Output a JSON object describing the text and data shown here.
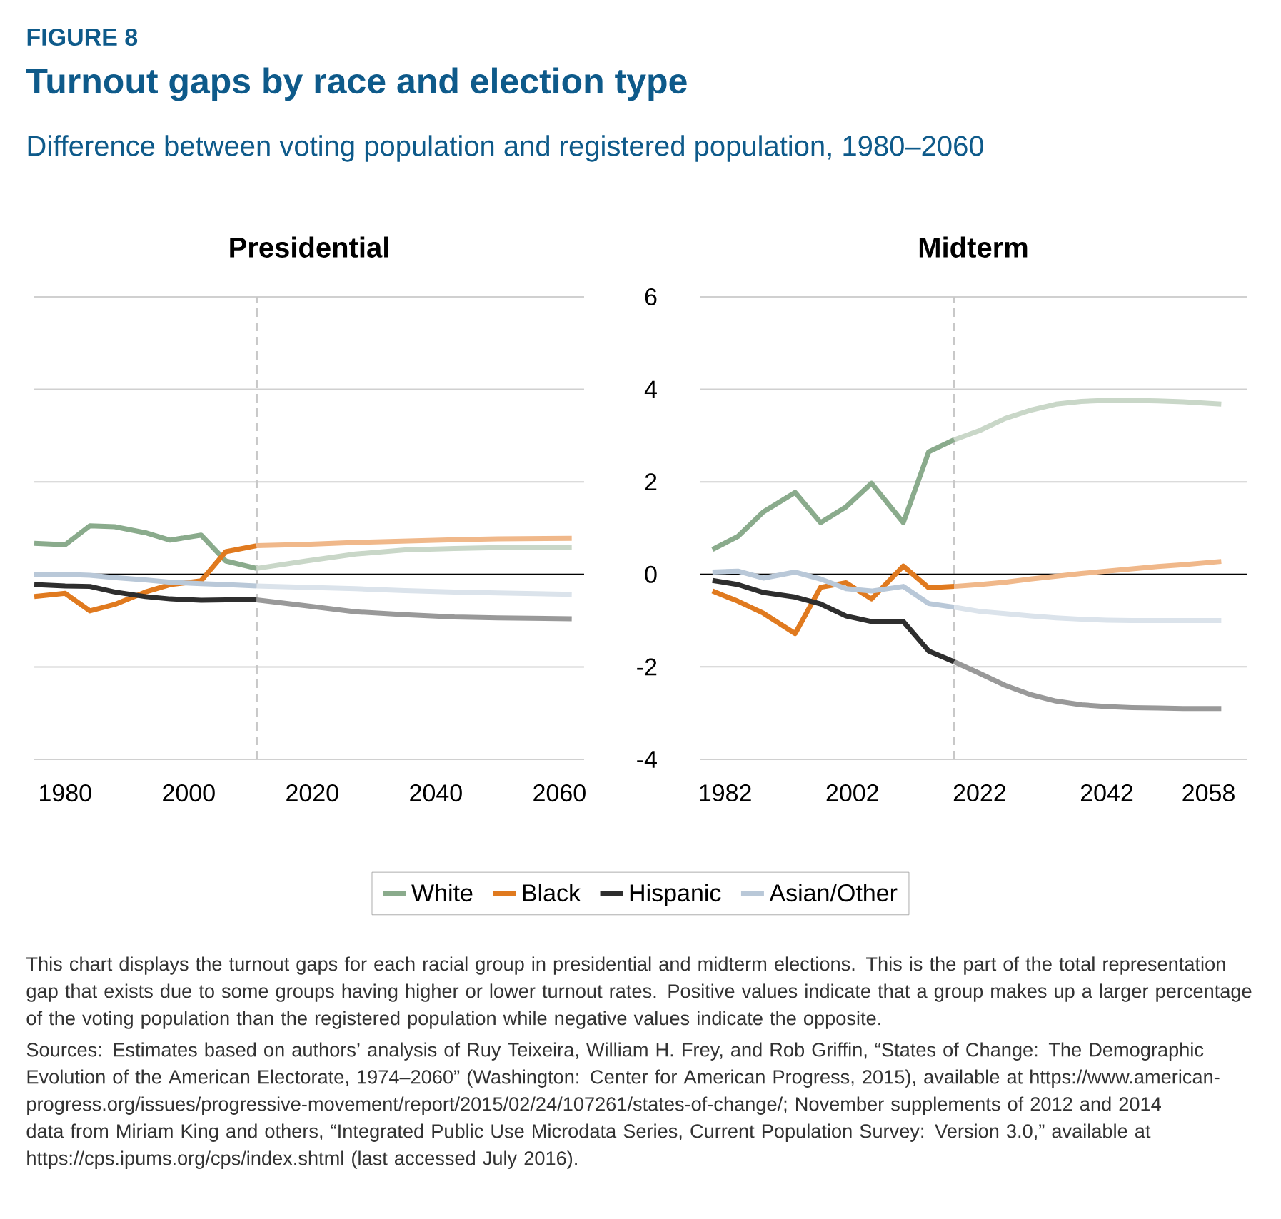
{
  "chart_data": [
    {
      "type": "other",
      "title": "Turnout gaps by race and election type",
      "subtitle": "Difference between voting population and registered population, 1980–2060",
      "annotations": [
        "FIGURE 8",
        "This chart displays the turnout gaps for each racial group in presidential and midterm elections. This is the part of the total representation gap that exists due to some groups having higher or lower turnout rates. Positive values indicate that a group makes up a larger percentage of the voting population than the registered population while negative values indicate the opposite.",
        "Sources: Estimates based on authors’ analysis of Ruy Teixeira, William H. Frey, and Rob Griffin, “States of Change: The Demographic Evolution of the American Electorate, 1974–2060” (Washington: Center for American Progress, 2015), available at https://www.american-progress.org/issues/progressive-movement/report/2015/02/24/107261/states-of-change/; November supplements of 2012 and 2014 data from Miriam King and others, “Integrated Public Use Microdata Series, Current Population Survey: Version 3.0,” available at https://cps.ipums.org/cps/index.shtml (last accessed July 2016)."
      ]
    },
    {
      "type": "line",
      "title": "Presidential",
      "xlim": [
        1975,
        2064
      ],
      "ylim": [
        -4,
        6
      ],
      "xticks": [
        1980,
        2000,
        2020,
        2040,
        2060
      ],
      "yticks": [
        -4,
        -2,
        0,
        2,
        4,
        6
      ],
      "tick_labels": "x",
      "grid": "y",
      "legend": "bottom",
      "ref_lines": [
        {
          "axis": "x",
          "value": 2011,
          "color": "#c8c8c8",
          "line_style": "dashed"
        },
        {
          "axis": "y",
          "value": 0,
          "color": "#000000"
        }
      ],
      "series": [
        {
          "name": "White",
          "color": "#8aab8c",
          "x": [
            1975,
            1980,
            1984,
            1988,
            1993,
            1997,
            2002,
            2006,
            2011
          ],
          "values": [
            0.67,
            0.64,
            1.05,
            1.03,
            0.9,
            0.74,
            0.85,
            0.29,
            0.13
          ]
        },
        {
          "name": "Black",
          "color": "#e07a1f",
          "x": [
            1975,
            1980,
            1984,
            1988,
            1993,
            1997,
            2002,
            2006,
            2011
          ],
          "values": [
            -0.48,
            -0.41,
            -0.79,
            -0.65,
            -0.38,
            -0.22,
            -0.14,
            0.49,
            0.62
          ]
        },
        {
          "name": "Hispanic",
          "color": "#2e2e2e",
          "x": [
            1975,
            1980,
            1984,
            1988,
            1993,
            1997,
            2002,
            2006,
            2011
          ],
          "values": [
            -0.22,
            -0.25,
            -0.26,
            -0.38,
            -0.48,
            -0.53,
            -0.56,
            -0.55,
            -0.55
          ]
        },
        {
          "name": "Asian/Other",
          "color": "#b9c8d8",
          "x": [
            1975,
            1980,
            1984,
            1988,
            1993,
            1997,
            2002,
            2006,
            2011
          ],
          "values": [
            0,
            0,
            -0.02,
            -0.07,
            -0.12,
            -0.17,
            -0.2,
            -0.22,
            -0.25
          ]
        },
        {
          "color": "#c9d7c8",
          "x": [
            2011,
            2019,
            2027,
            2035,
            2043,
            2050,
            2062
          ],
          "values": [
            0.13,
            0.29,
            0.44,
            0.53,
            0.56,
            0.58,
            0.59
          ]
        },
        {
          "color": "#f0b88a",
          "x": [
            2011,
            2019,
            2027,
            2035,
            2043,
            2050,
            2062
          ],
          "values": [
            0.62,
            0.65,
            0.69,
            0.72,
            0.75,
            0.77,
            0.78
          ]
        },
        {
          "color": "#999999",
          "x": [
            2011,
            2019,
            2027,
            2035,
            2043,
            2050,
            2062
          ],
          "values": [
            -0.55,
            -0.68,
            -0.81,
            -0.87,
            -0.92,
            -0.94,
            -0.96
          ]
        },
        {
          "color": "#dbe3eb",
          "x": [
            2011,
            2019,
            2027,
            2035,
            2043,
            2050,
            2062
          ],
          "values": [
            -0.25,
            -0.28,
            -0.31,
            -0.35,
            -0.38,
            -0.4,
            -0.43
          ]
        }
      ]
    },
    {
      "type": "line",
      "title": "Midterm",
      "xlim": [
        1978,
        2064
      ],
      "ylim": [
        -4,
        6
      ],
      "xticks": [
        1982,
        2002,
        2022,
        2042,
        2058
      ],
      "yticks": [
        -4,
        -2,
        0,
        2,
        4,
        6
      ],
      "grid": "y",
      "ref_lines": [
        {
          "axis": "x",
          "value": 2018,
          "color": "#c8c8c8",
          "line_style": "dashed"
        },
        {
          "axis": "y",
          "value": 0,
          "color": "#000000"
        }
      ],
      "series": [
        {
          "color": "#8aab8c",
          "x": [
            1980,
            1984,
            1988,
            1993,
            1997,
            2001,
            2005,
            2010,
            2014,
            2018
          ],
          "values": [
            0.54,
            0.82,
            1.35,
            1.77,
            1.12,
            1.46,
            1.97,
            1.12,
            2.65,
            2.91
          ]
        },
        {
          "color": "#e07a1f",
          "x": [
            1980,
            1984,
            1988,
            1993,
            1997,
            2001,
            2005,
            2010,
            2014,
            2018
          ],
          "values": [
            -0.36,
            -0.58,
            -0.84,
            -1.28,
            -0.28,
            -0.18,
            -0.53,
            0.18,
            -0.29,
            -0.26
          ]
        },
        {
          "color": "#2e2e2e",
          "x": [
            1980,
            1984,
            1988,
            1993,
            1997,
            2001,
            2005,
            2010,
            2014,
            2018
          ],
          "values": [
            -0.13,
            -0.22,
            -0.39,
            -0.49,
            -0.64,
            -0.9,
            -1.02,
            -1.02,
            -1.66,
            -1.89
          ]
        },
        {
          "color": "#b9c8d8",
          "x": [
            1980,
            1984,
            1988,
            1993,
            1997,
            2001,
            2005,
            2010,
            2014,
            2018
          ],
          "values": [
            0.05,
            0.07,
            -0.08,
            0.05,
            -0.1,
            -0.31,
            -0.36,
            -0.26,
            -0.63,
            -0.71
          ]
        },
        {
          "color": "#c9d7c8",
          "x": [
            2018,
            2022,
            2026,
            2030,
            2034,
            2038,
            2042,
            2046,
            2050,
            2054,
            2060
          ],
          "values": [
            2.91,
            3.11,
            3.37,
            3.55,
            3.68,
            3.74,
            3.76,
            3.76,
            3.75,
            3.73,
            3.68
          ]
        },
        {
          "color": "#f0b88a",
          "x": [
            2018,
            2022,
            2026,
            2030,
            2034,
            2038,
            2042,
            2046,
            2050,
            2054,
            2060
          ],
          "values": [
            -0.26,
            -0.22,
            -0.17,
            -0.1,
            -0.04,
            0.02,
            0.07,
            0.12,
            0.17,
            0.21,
            0.28
          ]
        },
        {
          "color": "#999999",
          "x": [
            2018,
            2022,
            2026,
            2030,
            2034,
            2038,
            2042,
            2046,
            2050,
            2054,
            2060
          ],
          "values": [
            -1.89,
            -2.14,
            -2.4,
            -2.6,
            -2.74,
            -2.82,
            -2.86,
            -2.88,
            -2.89,
            -2.9,
            -2.9
          ]
        },
        {
          "color": "#dbe3eb",
          "x": [
            2018,
            2022,
            2026,
            2030,
            2034,
            2038,
            2042,
            2046,
            2050,
            2054,
            2060
          ],
          "values": [
            -0.71,
            -0.8,
            -0.85,
            -0.9,
            -0.94,
            -0.97,
            -0.99,
            -1,
            -1,
            -1,
            -1
          ]
        }
      ]
    }
  ]
}
